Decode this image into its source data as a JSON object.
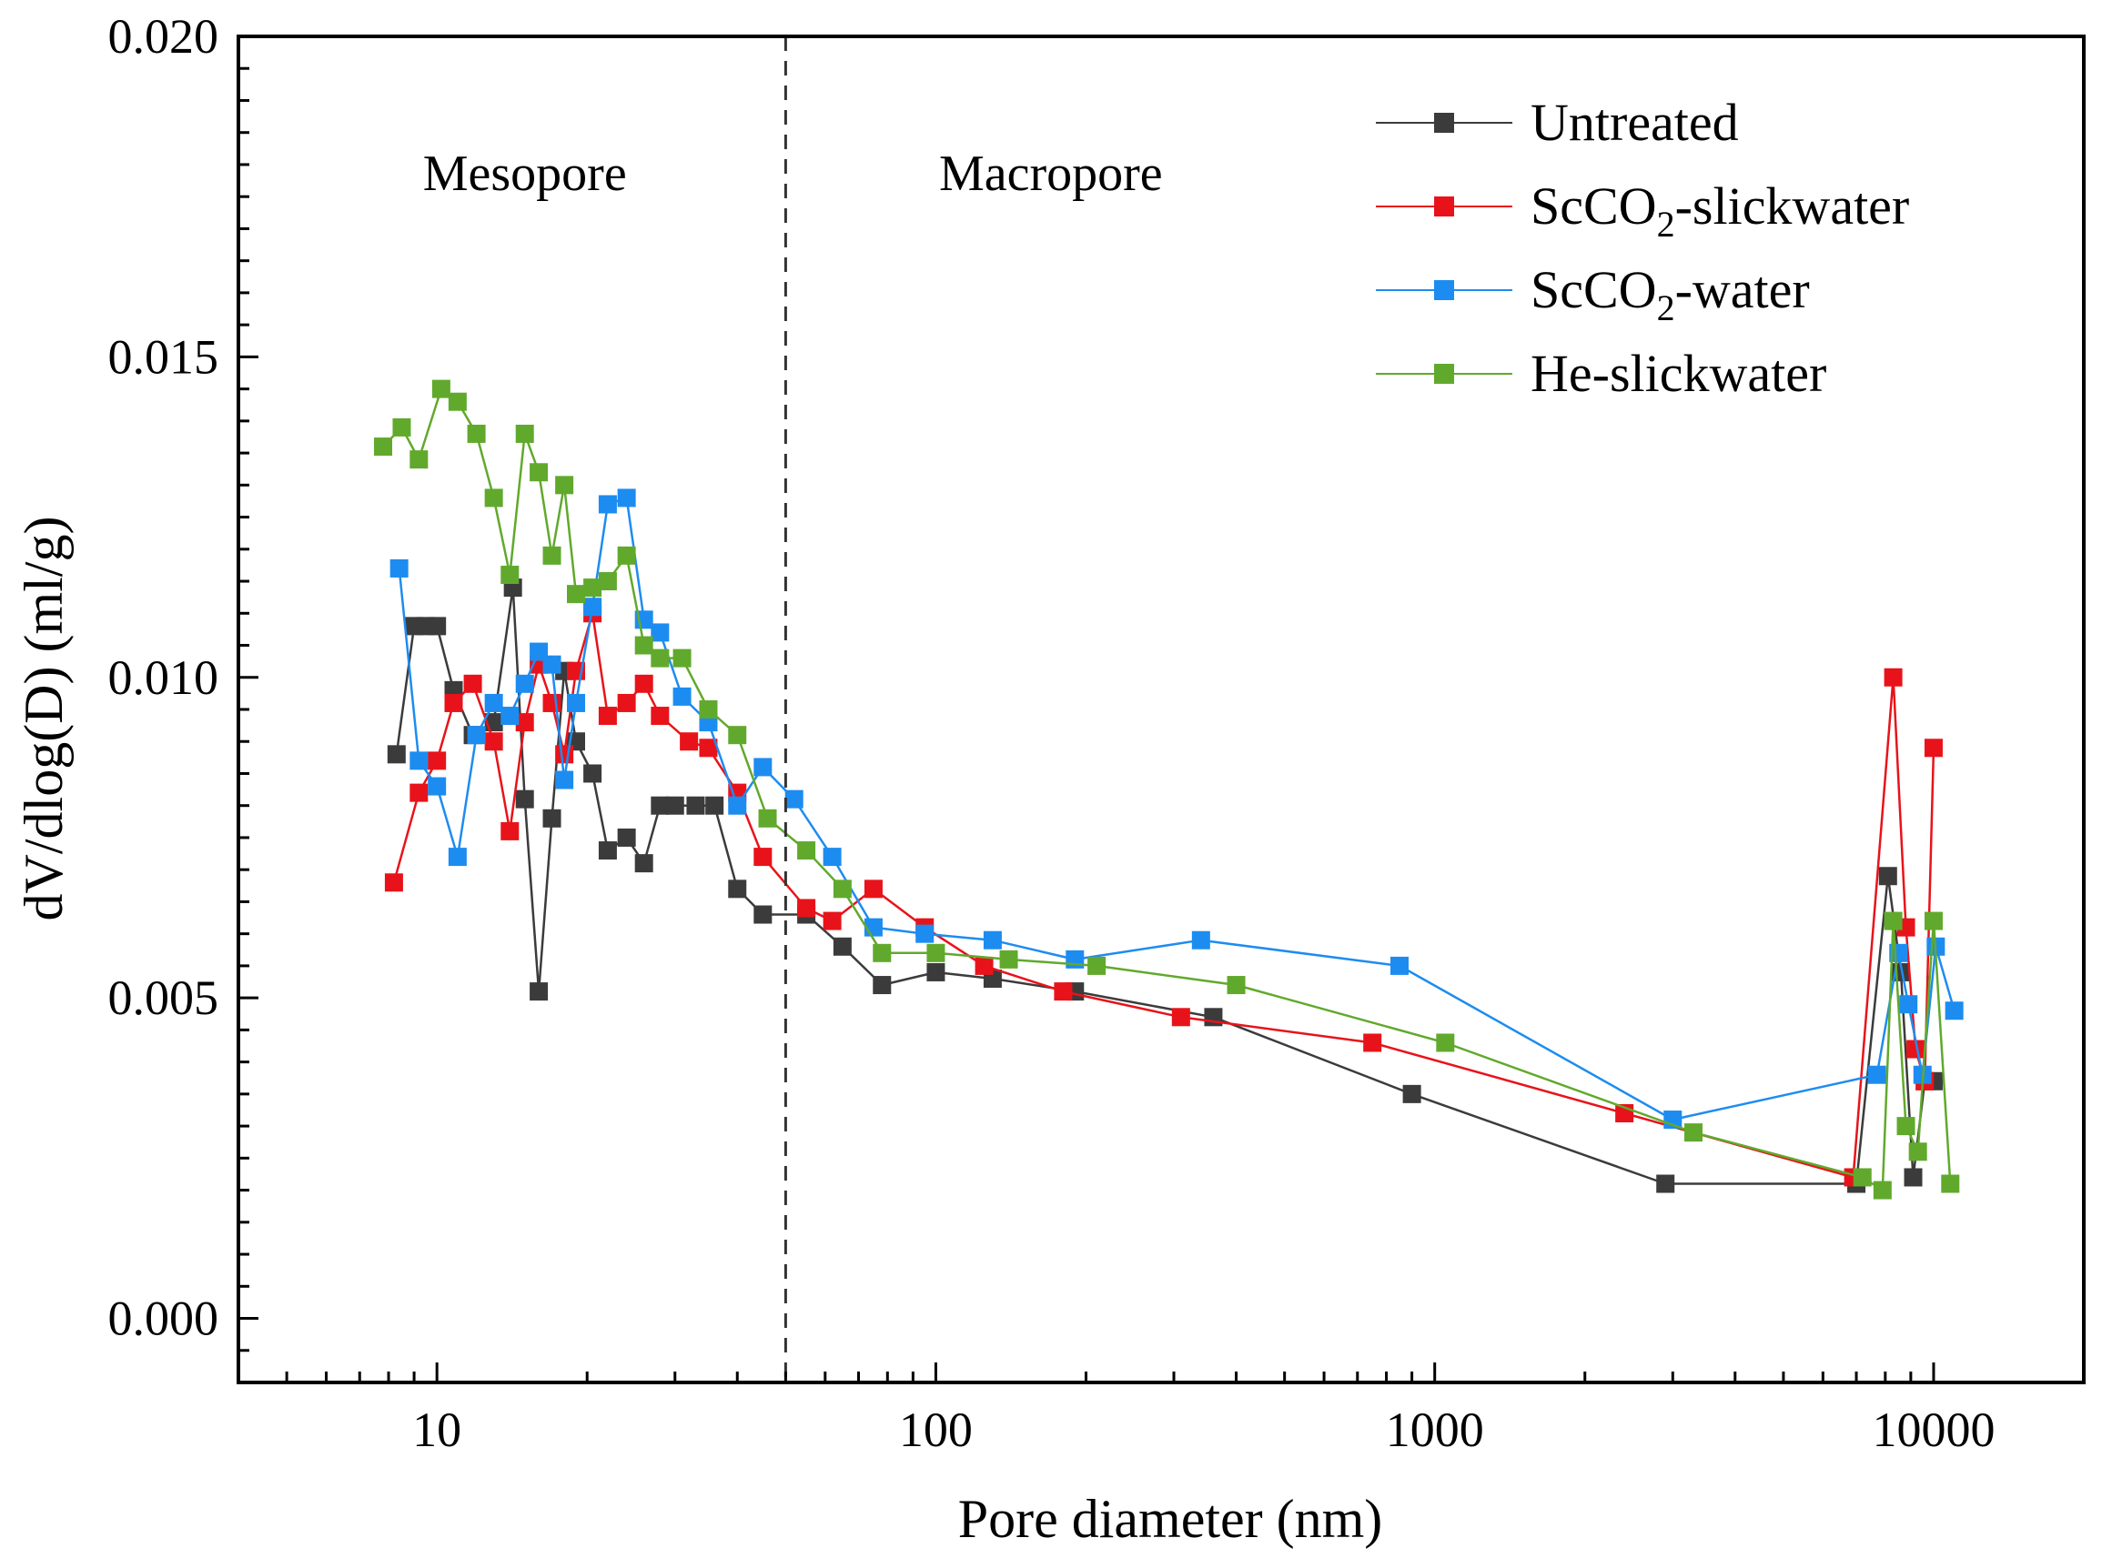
{
  "chart_data": {
    "type": "line",
    "title": "",
    "xlabel": "Pore diameter (nm)",
    "ylabel": "dV/dlog(D) (ml/g)",
    "xscale": "log",
    "xlim": [
      4,
      20000
    ],
    "ylim": [
      -0.001,
      0.02
    ],
    "x_ticks": [
      10,
      100,
      1000,
      10000
    ],
    "x_tick_labels": [
      "10",
      "100",
      "1000",
      "10000"
    ],
    "y_ticks": [
      0.0,
      0.005,
      0.01,
      0.015,
      0.02
    ],
    "y_tick_labels": [
      "0.000",
      "0.005",
      "0.010",
      "0.015",
      "0.020"
    ],
    "grid": false,
    "legend_position": "top-right",
    "divider_x": 50,
    "annotations": [
      {
        "text": "Mesopore",
        "x": 15,
        "y": 0.0176
      },
      {
        "text": "Macropore",
        "x": 170,
        "y": 0.0176
      }
    ],
    "series": [
      {
        "name": "Untreated",
        "color": "#3b3b3b",
        "x": [
          8.3,
          9.0,
          9.5,
          10.0,
          10.8,
          11.8,
          13.0,
          14.2,
          15.0,
          16.0,
          17.0,
          18.0,
          19.0,
          20.5,
          22.0,
          24.0,
          26.0,
          28.0,
          30.0,
          33.0,
          36.0,
          40.0,
          45.0,
          55.0,
          65.0,
          78.0,
          100.0,
          130.0,
          190.0,
          360.0,
          900.0,
          2900.0,
          7000.0,
          8100.0,
          8600.0,
          9100.0,
          9600.0,
          10000.0
        ],
        "y": [
          0.0088,
          0.0108,
          0.0108,
          0.0108,
          0.0098,
          0.0091,
          0.0093,
          0.0114,
          0.0081,
          0.0051,
          0.0078,
          0.0101,
          0.009,
          0.0085,
          0.0073,
          0.0075,
          0.0071,
          0.008,
          0.008,
          0.008,
          0.008,
          0.0067,
          0.0063,
          0.0063,
          0.0058,
          0.0052,
          0.0054,
          0.0053,
          0.0051,
          0.0047,
          0.0035,
          0.0021,
          0.0021,
          0.0069,
          0.0054,
          0.0022,
          0.0037,
          0.0037
        ]
      },
      {
        "name": "ScCO2-slickwater",
        "name_main": "ScCO",
        "name_sub": "2",
        "name_tail": "-slickwater",
        "color": "#e8131a",
        "x": [
          8.2,
          9.2,
          10.0,
          10.8,
          11.8,
          13.0,
          14.0,
          15.0,
          16.0,
          17.0,
          18.0,
          19.0,
          20.5,
          22.0,
          24.0,
          26.0,
          28.0,
          32.0,
          35.0,
          40.0,
          45.0,
          55.0,
          62.0,
          75.0,
          95.0,
          125.0,
          180.0,
          310.0,
          750.0,
          2400.0,
          6900.0,
          8300.0,
          8800.0,
          9200.0,
          9600.0,
          10000.0
        ],
        "y": [
          0.0068,
          0.0082,
          0.0087,
          0.0096,
          0.0099,
          0.009,
          0.0076,
          0.0093,
          0.0102,
          0.0096,
          0.0088,
          0.0101,
          0.011,
          0.0094,
          0.0096,
          0.0099,
          0.0094,
          0.009,
          0.0089,
          0.0082,
          0.0072,
          0.0064,
          0.0062,
          0.0067,
          0.0061,
          0.0055,
          0.0051,
          0.0047,
          0.0043,
          0.0032,
          0.0022,
          0.01,
          0.0061,
          0.0042,
          0.0037,
          0.0089
        ]
      },
      {
        "name": "ScCO2-water",
        "name_main": "ScCO",
        "name_sub": "2",
        "name_tail": "-water",
        "color": "#1d8cf0",
        "x": [
          8.4,
          9.2,
          10.0,
          11.0,
          12.0,
          13.0,
          14.0,
          15.0,
          16.0,
          17.0,
          18.0,
          19.0,
          20.5,
          22.0,
          24.0,
          26.0,
          28.0,
          31.0,
          35.0,
          40.0,
          45.0,
          52.0,
          62.0,
          75.0,
          95.0,
          130.0,
          190.0,
          340.0,
          850.0,
          3000.0,
          7700.0,
          8500.0,
          8900.0,
          9500.0,
          10100.0,
          11000.0
        ],
        "y": [
          0.0117,
          0.0087,
          0.0083,
          0.0072,
          0.0091,
          0.0096,
          0.0094,
          0.0099,
          0.0104,
          0.0102,
          0.0084,
          0.0096,
          0.0111,
          0.0127,
          0.0128,
          0.0109,
          0.0107,
          0.0097,
          0.0093,
          0.008,
          0.0086,
          0.0081,
          0.0072,
          0.0061,
          0.006,
          0.0059,
          0.0056,
          0.0059,
          0.0055,
          0.0031,
          0.0038,
          0.0057,
          0.0049,
          0.0038,
          0.0058,
          0.0048
        ]
      },
      {
        "name": "He-slickwater",
        "color": "#61a92c",
        "x": [
          7.8,
          8.5,
          9.2,
          10.2,
          11.0,
          12.0,
          13.0,
          14.0,
          15.0,
          16.0,
          17.0,
          18.0,
          19.0,
          20.5,
          22.0,
          24.0,
          26.0,
          28.0,
          31.0,
          35.0,
          40.0,
          46.0,
          55.0,
          65.0,
          78.0,
          100.0,
          140.0,
          210.0,
          400.0,
          1050.0,
          3300.0,
          7200.0,
          7900.0,
          8300.0,
          8800.0,
          9300.0,
          10000.0,
          10800.0
        ],
        "y": [
          0.0136,
          0.0139,
          0.0134,
          0.0145,
          0.0143,
          0.0138,
          0.0128,
          0.0116,
          0.0138,
          0.0132,
          0.0119,
          0.013,
          0.0113,
          0.0114,
          0.0115,
          0.0119,
          0.0105,
          0.0103,
          0.0103,
          0.0095,
          0.0091,
          0.0078,
          0.0073,
          0.0067,
          0.0057,
          0.0057,
          0.0056,
          0.0055,
          0.0052,
          0.0043,
          0.0029,
          0.0022,
          0.002,
          0.0062,
          0.003,
          0.0026,
          0.0062,
          0.0021
        ]
      }
    ]
  }
}
